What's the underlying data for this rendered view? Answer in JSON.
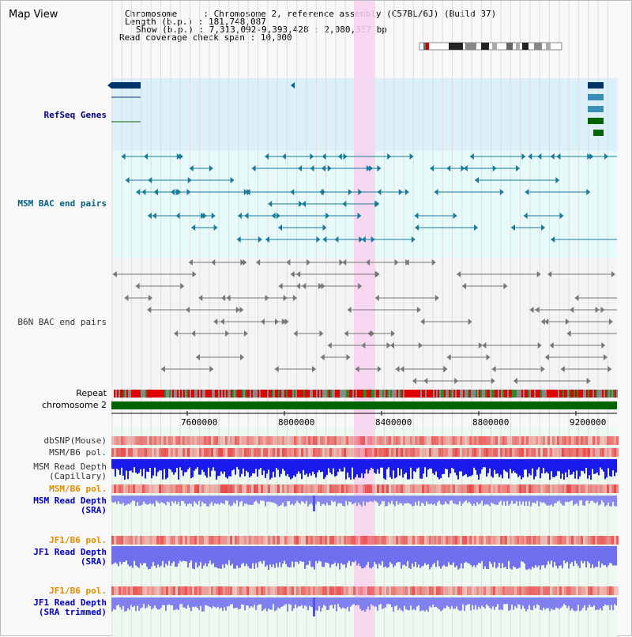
{
  "window_title": "Map View",
  "header": {
    "chromosome_label": "Chromosome",
    "chromosome_value": "Chromosome 2, reference assembly (C57BL/6J) (Build 37)",
    "length_label": "Length (b.p.)",
    "length_value": "181,748,087",
    "show_label": "Show (b.p.)",
    "show_value": "7,313,092-9,393,428 : 2,080,337 bp",
    "coverage_label": "Read coverage check span",
    "coverage_value": "10,000"
  },
  "tracks": {
    "refseq": "RefSeq Genes",
    "msm_bac": "MSM BAC end pairs",
    "b6n_bac": "B6N BAC end pairs",
    "repeat": "Repeat",
    "chromosome": "chromosome 2",
    "dbsnp": "dbSNP(Mouse)",
    "msm_b6_pol": "MSM/B6 pol.",
    "msm_depth_cap_1": "MSM Read Depth",
    "msm_depth_cap_2": "(Capillary)",
    "msm_b6_pol_2": "MSM/B6 pol.",
    "msm_depth_sra_1": "MSM Read Depth",
    "msm_depth_sra_2": "(SRA)",
    "jf1_b6_pol": "JF1/B6 pol.",
    "jf1_depth_sra_1": "JF1 Read Depth",
    "jf1_depth_sra_2": "(SRA)",
    "jf1_b6_pol_2": "JF1/B6 pol.",
    "jf1_depth_trim_1": "JF1 Read Depth",
    "jf1_depth_trim_2": "(SRA trimmed)"
  },
  "axis": {
    "ticks": [
      "7600000",
      "8000000",
      "8400000",
      "8800000",
      "9200000"
    ]
  },
  "colors": {
    "refseq_bg": "#dcf0fa",
    "msm_bg": "#e6fafa",
    "b6n_bg": "#f4f4f4",
    "highlight": "#f8d2ee",
    "refseq_label": "#000080",
    "msm_label": "#006080",
    "b6n_label": "#333333",
    "orange_label": "#e08c00",
    "blue_label": "#0000c0",
    "chromosome_green": "#006400"
  }
}
